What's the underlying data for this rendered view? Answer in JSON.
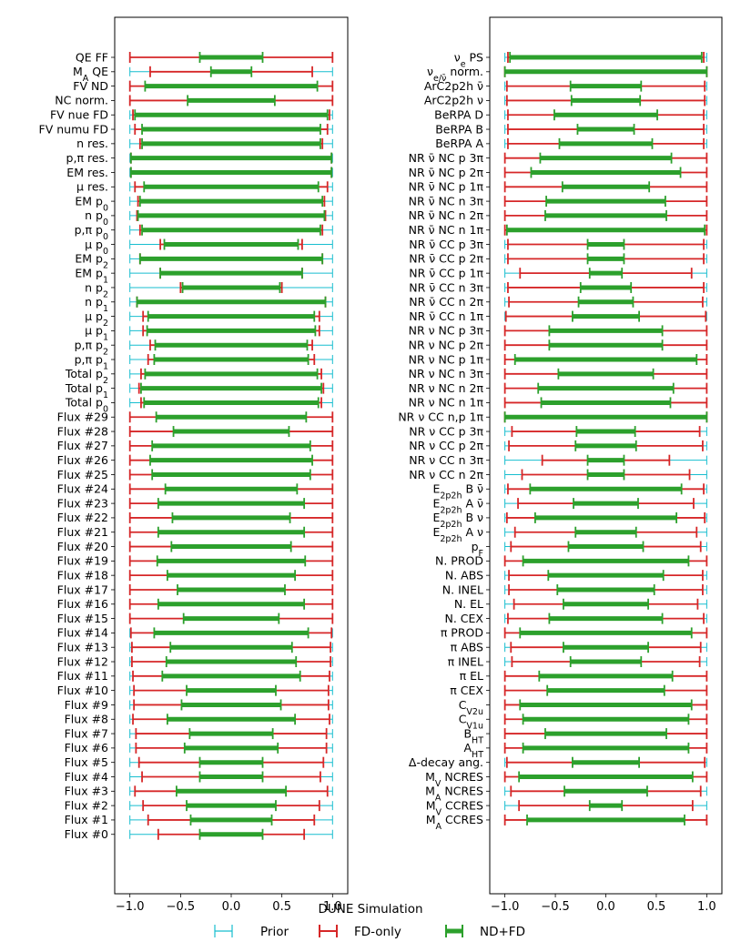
{
  "chart_data": {
    "type": "errorbar",
    "footer": "DUNE Simulation",
    "legend": {
      "placement": "bottom",
      "items": [
        {
          "key": "prior",
          "label": "Prior",
          "color": "#17becf"
        },
        {
          "key": "fd",
          "label": "FD-only",
          "color": "#d62728"
        },
        {
          "key": "ndfd",
          "label": "ND+FD",
          "color": "#2ca02c"
        }
      ]
    },
    "panels": [
      {
        "name": "left",
        "xlim": [
          -1.15,
          1.15
        ],
        "xticks": [
          "−1.0",
          "−0.5",
          "0.0",
          "0.5",
          "1.0"
        ],
        "xtick_values": [
          -1.0,
          -0.5,
          0.0,
          0.5,
          1.0
        ],
        "rows": [
          {
            "label": "QE FF",
            "prior": 1.0,
            "fd": 1.0,
            "ndfd": 0.31
          },
          {
            "label": "M_A QE",
            "prior": 1.0,
            "fd": 0.8,
            "ndfd": 0.2
          },
          {
            "label": "FV ND",
            "prior": 1.0,
            "fd": 1.0,
            "ndfd": 0.85
          },
          {
            "label": "NC norm.",
            "prior": 1.0,
            "fd": 1.0,
            "ndfd": 0.43
          },
          {
            "label": "FV nue FD",
            "prior": 1.0,
            "fd": 0.97,
            "ndfd": 0.95
          },
          {
            "label": "FV numu FD",
            "prior": 1.0,
            "fd": 0.95,
            "ndfd": 0.88
          },
          {
            "label": "n res.",
            "prior": 1.0,
            "fd": 0.9,
            "ndfd": 0.88
          },
          {
            "label": "p,π res.",
            "prior": 1.0,
            "fd": 0.99,
            "ndfd": 0.99
          },
          {
            "label": "EM res.",
            "prior": 1.0,
            "fd": 0.99,
            "ndfd": 0.99
          },
          {
            "label": "μ res.",
            "prior": 1.0,
            "fd": 0.95,
            "ndfd": 0.86
          },
          {
            "label": "EM p_0",
            "prior": 1.0,
            "fd": 0.92,
            "ndfd": 0.9
          },
          {
            "label": "n p_0",
            "prior": 1.0,
            "fd": 0.93,
            "ndfd": 0.92
          },
          {
            "label": "p,π p_0",
            "prior": 1.0,
            "fd": 0.9,
            "ndfd": 0.88
          },
          {
            "label": "μ p_0",
            "prior": 1.0,
            "fd": 0.7,
            "ndfd": 0.66
          },
          {
            "label": "EM p_2",
            "prior": 1.0,
            "fd": 0.9,
            "ndfd": 0.9
          },
          {
            "label": "EM p_1",
            "prior": 1.0,
            "fd": 0.7,
            "ndfd": 0.7
          },
          {
            "label": "n p_2",
            "prior": 1.0,
            "fd": 0.5,
            "ndfd": 0.48
          },
          {
            "label": "n p_1",
            "prior": 1.0,
            "fd": 0.93,
            "ndfd": 0.93
          },
          {
            "label": "μ p_2",
            "prior": 1.0,
            "fd": 0.87,
            "ndfd": 0.82
          },
          {
            "label": "μ p_1",
            "prior": 1.0,
            "fd": 0.87,
            "ndfd": 0.83
          },
          {
            "label": "p,π p_2",
            "prior": 1.0,
            "fd": 0.8,
            "ndfd": 0.75
          },
          {
            "label": "p,π p_1",
            "prior": 1.0,
            "fd": 0.82,
            "ndfd": 0.76
          },
          {
            "label": "Total p_2",
            "prior": 1.0,
            "fd": 0.89,
            "ndfd": 0.85
          },
          {
            "label": "Total p_1",
            "prior": 1.0,
            "fd": 0.91,
            "ndfd": 0.89
          },
          {
            "label": "Total p_0",
            "prior": 1.0,
            "fd": 0.89,
            "ndfd": 0.86
          },
          {
            "label": "Flux #29",
            "prior": 1.0,
            "fd": 1.0,
            "ndfd": 0.74
          },
          {
            "label": "Flux #28",
            "prior": 1.0,
            "fd": 1.0,
            "ndfd": 0.57
          },
          {
            "label": "Flux #27",
            "prior": 1.0,
            "fd": 1.0,
            "ndfd": 0.78
          },
          {
            "label": "Flux #26",
            "prior": 1.0,
            "fd": 1.0,
            "ndfd": 0.8
          },
          {
            "label": "Flux #25",
            "prior": 1.0,
            "fd": 1.0,
            "ndfd": 0.78
          },
          {
            "label": "Flux #24",
            "prior": 1.0,
            "fd": 1.0,
            "ndfd": 0.65
          },
          {
            "label": "Flux #23",
            "prior": 1.0,
            "fd": 1.0,
            "ndfd": 0.72
          },
          {
            "label": "Flux #22",
            "prior": 1.0,
            "fd": 1.0,
            "ndfd": 0.58
          },
          {
            "label": "Flux #21",
            "prior": 1.0,
            "fd": 1.0,
            "ndfd": 0.72
          },
          {
            "label": "Flux #20",
            "prior": 1.0,
            "fd": 1.0,
            "ndfd": 0.59
          },
          {
            "label": "Flux #19",
            "prior": 1.0,
            "fd": 1.0,
            "ndfd": 0.73
          },
          {
            "label": "Flux #18",
            "prior": 1.0,
            "fd": 1.0,
            "ndfd": 0.63
          },
          {
            "label": "Flux #17",
            "prior": 1.0,
            "fd": 1.0,
            "ndfd": 0.53
          },
          {
            "label": "Flux #16",
            "prior": 1.0,
            "fd": 1.0,
            "ndfd": 0.72
          },
          {
            "label": "Flux #15",
            "prior": 1.0,
            "fd": 1.0,
            "ndfd": 0.47
          },
          {
            "label": "Flux #14",
            "prior": 1.0,
            "fd": 0.99,
            "ndfd": 0.76
          },
          {
            "label": "Flux #13",
            "prior": 1.0,
            "fd": 0.98,
            "ndfd": 0.6
          },
          {
            "label": "Flux #12",
            "prior": 1.0,
            "fd": 0.98,
            "ndfd": 0.64
          },
          {
            "label": "Flux #11",
            "prior": 1.0,
            "fd": 0.97,
            "ndfd": 0.68
          },
          {
            "label": "Flux #10",
            "prior": 1.0,
            "fd": 0.96,
            "ndfd": 0.44
          },
          {
            "label": "Flux #9",
            "prior": 1.0,
            "fd": 0.96,
            "ndfd": 0.49
          },
          {
            "label": "Flux #8",
            "prior": 1.0,
            "fd": 0.97,
            "ndfd": 0.63
          },
          {
            "label": "Flux #7",
            "prior": 1.0,
            "fd": 0.94,
            "ndfd": 0.41
          },
          {
            "label": "Flux #6",
            "prior": 1.0,
            "fd": 0.94,
            "ndfd": 0.46
          },
          {
            "label": "Flux #5",
            "prior": 1.0,
            "fd": 0.91,
            "ndfd": 0.31
          },
          {
            "label": "Flux #4",
            "prior": 1.0,
            "fd": 0.88,
            "ndfd": 0.31
          },
          {
            "label": "Flux #3",
            "prior": 1.0,
            "fd": 0.95,
            "ndfd": 0.54
          },
          {
            "label": "Flux #2",
            "prior": 1.0,
            "fd": 0.87,
            "ndfd": 0.44
          },
          {
            "label": "Flux #1",
            "prior": 1.0,
            "fd": 0.82,
            "ndfd": 0.4
          },
          {
            "label": "Flux #0",
            "prior": 1.0,
            "fd": 0.72,
            "ndfd": 0.31
          }
        ]
      },
      {
        "name": "right",
        "xlim": [
          -1.15,
          1.15
        ],
        "xticks": [
          "−1.0",
          "−0.5",
          "0.0",
          "0.5",
          "1.0"
        ],
        "xtick_values": [
          -1.0,
          -0.5,
          0.0,
          0.5,
          1.0
        ],
        "rows": [
          {
            "label": "ν_e PS",
            "prior": 1.0,
            "fd": 0.97,
            "ndfd": 0.95
          },
          {
            "label": "ν_e/ν̄ norm.",
            "prior": 1.0,
            "fd": 1.0,
            "ndfd": 1.0
          },
          {
            "label": "ArC2p2h ν̄",
            "prior": 1.0,
            "fd": 0.98,
            "ndfd": 0.35
          },
          {
            "label": "ArC2p2h ν",
            "prior": 1.0,
            "fd": 0.98,
            "ndfd": 0.34
          },
          {
            "label": "BeRPA D",
            "prior": 1.0,
            "fd": 0.97,
            "ndfd": 0.51
          },
          {
            "label": "BeRPA B",
            "prior": 1.0,
            "fd": 0.97,
            "ndfd": 0.28
          },
          {
            "label": "BeRPA A",
            "prior": 1.0,
            "fd": 0.97,
            "ndfd": 0.46
          },
          {
            "label": "NR ν̄ NC p 3π",
            "prior": 1.0,
            "fd": 1.0,
            "ndfd": 0.65
          },
          {
            "label": "NR ν̄ NC p 2π",
            "prior": 1.0,
            "fd": 1.0,
            "ndfd": 0.74
          },
          {
            "label": "NR ν̄ NC p 1π",
            "prior": 1.0,
            "fd": 1.0,
            "ndfd": 0.43
          },
          {
            "label": "NR ν̄ NC n 3π",
            "prior": 1.0,
            "fd": 1.0,
            "ndfd": 0.59
          },
          {
            "label": "NR ν̄ NC n 2π",
            "prior": 1.0,
            "fd": 1.0,
            "ndfd": 0.6
          },
          {
            "label": "NR ν̄ NC n 1π",
            "prior": 1.0,
            "fd": 1.0,
            "ndfd": 0.98
          },
          {
            "label": "NR ν̄ CC p 3π",
            "prior": 1.0,
            "fd": 0.97,
            "ndfd": 0.18
          },
          {
            "label": "NR ν̄ CC p 2π",
            "prior": 1.0,
            "fd": 0.97,
            "ndfd": 0.18
          },
          {
            "label": "NR ν̄ CC p 1π",
            "prior": 1.0,
            "fd": 0.85,
            "ndfd": 0.16
          },
          {
            "label": "NR ν̄ CC n 3π",
            "prior": 1.0,
            "fd": 0.97,
            "ndfd": 0.25
          },
          {
            "label": "NR ν̄ CC n 2π",
            "prior": 1.0,
            "fd": 0.96,
            "ndfd": 0.27
          },
          {
            "label": "NR ν̄ CC n 1π",
            "prior": 1.0,
            "fd": 0.99,
            "ndfd": 0.33
          },
          {
            "label": "NR ν NC p 3π",
            "prior": 1.0,
            "fd": 1.0,
            "ndfd": 0.56
          },
          {
            "label": "NR ν NC p 2π",
            "prior": 1.0,
            "fd": 1.0,
            "ndfd": 0.56
          },
          {
            "label": "NR ν NC p 1π",
            "prior": 1.0,
            "fd": 1.0,
            "ndfd": 0.9
          },
          {
            "label": "NR ν NC n 3π",
            "prior": 1.0,
            "fd": 1.0,
            "ndfd": 0.47
          },
          {
            "label": "NR ν NC n 2π",
            "prior": 1.0,
            "fd": 1.0,
            "ndfd": 0.67
          },
          {
            "label": "NR ν NC n 1π",
            "prior": 1.0,
            "fd": 1.0,
            "ndfd": 0.64
          },
          {
            "label": "NR ν CC n,p 1π",
            "prior": 1.0,
            "fd": 1.0,
            "ndfd": 1.0
          },
          {
            "label": "NR ν CC p 3π",
            "prior": 1.0,
            "fd": 0.93,
            "ndfd": 0.29
          },
          {
            "label": "NR ν CC p 2π",
            "prior": 1.0,
            "fd": 0.96,
            "ndfd": 0.3
          },
          {
            "label": "NR ν CC n 3π",
            "prior": 1.0,
            "fd": 0.63,
            "ndfd": 0.18
          },
          {
            "label": "NR ν CC n 2π",
            "prior": 1.0,
            "fd": 0.83,
            "ndfd": 0.18
          },
          {
            "label": "E_2p2h B ν̄",
            "prior": 1.0,
            "fd": 0.97,
            "ndfd": 0.75
          },
          {
            "label": "E_2p2h A ν̄",
            "prior": 1.0,
            "fd": 0.87,
            "ndfd": 0.32
          },
          {
            "label": "E_2p2h B ν",
            "prior": 1.0,
            "fd": 0.98,
            "ndfd": 0.7
          },
          {
            "label": "E_2p2h A ν",
            "prior": 1.0,
            "fd": 0.9,
            "ndfd": 0.3
          },
          {
            "label": "p_F",
            "prior": 1.0,
            "fd": 0.94,
            "ndfd": 0.37
          },
          {
            "label": "N. PROD",
            "prior": 1.0,
            "fd": 1.0,
            "ndfd": 0.82
          },
          {
            "label": "N. ABS",
            "prior": 1.0,
            "fd": 0.96,
            "ndfd": 0.57
          },
          {
            "label": "N. INEL",
            "prior": 1.0,
            "fd": 0.96,
            "ndfd": 0.48
          },
          {
            "label": "N. EL",
            "prior": 1.0,
            "fd": 0.91,
            "ndfd": 0.42
          },
          {
            "label": "N. CEX",
            "prior": 1.0,
            "fd": 0.97,
            "ndfd": 0.56
          },
          {
            "label": "π PROD",
            "prior": 1.0,
            "fd": 1.0,
            "ndfd": 0.85
          },
          {
            "label": "π ABS",
            "prior": 1.0,
            "fd": 0.94,
            "ndfd": 0.42
          },
          {
            "label": "π INEL",
            "prior": 1.0,
            "fd": 0.93,
            "ndfd": 0.35
          },
          {
            "label": "π EL",
            "prior": 1.0,
            "fd": 1.0,
            "ndfd": 0.66
          },
          {
            "label": "π CEX",
            "prior": 1.0,
            "fd": 1.0,
            "ndfd": 0.58
          },
          {
            "label": "C_V2u",
            "prior": 1.0,
            "fd": 1.0,
            "ndfd": 0.85
          },
          {
            "label": "C_V1u",
            "prior": 1.0,
            "fd": 1.0,
            "ndfd": 0.82
          },
          {
            "label": "B_HT",
            "prior": 1.0,
            "fd": 1.0,
            "ndfd": 0.6
          },
          {
            "label": "A_HT",
            "prior": 1.0,
            "fd": 1.0,
            "ndfd": 0.82
          },
          {
            "label": "Δ-decay ang.",
            "prior": 1.0,
            "fd": 0.98,
            "ndfd": 0.33
          },
          {
            "label": "M_V NCRES",
            "prior": 1.0,
            "fd": 1.0,
            "ndfd": 0.86
          },
          {
            "label": "M_A NCRES",
            "prior": 1.0,
            "fd": 0.94,
            "ndfd": 0.41
          },
          {
            "label": "M_V CCRES",
            "prior": 1.0,
            "fd": 0.86,
            "ndfd": 0.16
          },
          {
            "label": "M_A CCRES",
            "prior": 1.0,
            "fd": 1.0,
            "ndfd": 0.78
          }
        ]
      }
    ]
  }
}
